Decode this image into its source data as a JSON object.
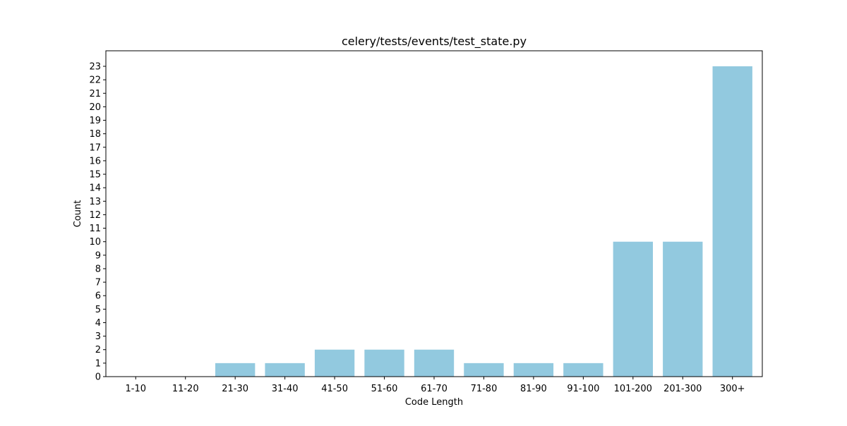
{
  "chart_data": {
    "type": "bar",
    "title": "celery/tests/events/test_state.py",
    "xlabel": "Code Length",
    "ylabel": "Count",
    "categories": [
      "1-10",
      "11-20",
      "21-30",
      "31-40",
      "41-50",
      "51-60",
      "61-70",
      "71-80",
      "81-90",
      "91-100",
      "101-200",
      "201-300",
      "300+"
    ],
    "values": [
      0,
      0,
      1,
      1,
      2,
      2,
      2,
      1,
      1,
      1,
      10,
      10,
      23
    ],
    "ylim": [
      0,
      24.15
    ],
    "yticks": [
      0,
      1,
      2,
      3,
      4,
      5,
      6,
      7,
      8,
      9,
      10,
      11,
      12,
      13,
      14,
      15,
      16,
      17,
      18,
      19,
      20,
      21,
      22,
      23
    ],
    "grid": false,
    "bar_color": "#92c9df"
  }
}
